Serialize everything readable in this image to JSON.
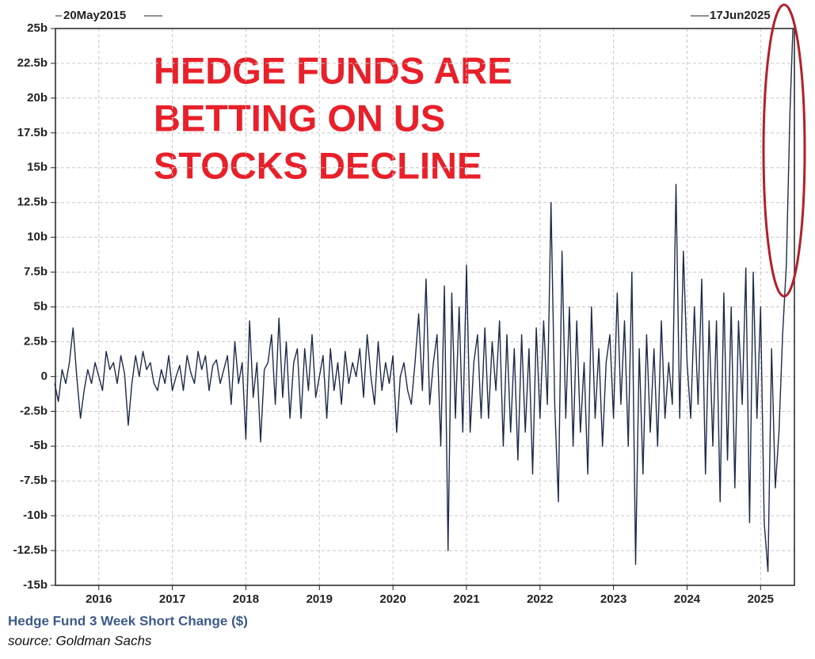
{
  "chart_data": {
    "type": "line",
    "annotation_lines": [
      "HEDGE FUNDS ARE",
      "BETTING ON US",
      "STOCKS DECLINE"
    ],
    "start_label": "20May2015",
    "end_label": "17Jun2025",
    "source": "source: Goldman Sachs",
    "grid": true,
    "x": [
      2015.4,
      2015.45,
      2015.5,
      2015.55,
      2015.6,
      2015.65,
      2015.7,
      2015.75,
      2015.8,
      2015.85,
      2015.9,
      2015.95,
      2016,
      2016.05,
      2016.1,
      2016.15,
      2016.2,
      2016.25,
      2016.3,
      2016.35,
      2016.4,
      2016.45,
      2016.5,
      2016.55,
      2016.6,
      2016.65,
      2016.7,
      2016.75,
      2016.8,
      2016.85,
      2016.9,
      2016.95,
      2017,
      2017.05,
      2017.1,
      2017.15,
      2017.2,
      2017.25,
      2017.3,
      2017.35,
      2017.4,
      2017.45,
      2017.5,
      2017.55,
      2017.6,
      2017.65,
      2017.7,
      2017.75,
      2017.8,
      2017.85,
      2017.9,
      2017.95,
      2018,
      2018.05,
      2018.1,
      2018.15,
      2018.2,
      2018.25,
      2018.3,
      2018.35,
      2018.4,
      2018.45,
      2018.5,
      2018.55,
      2018.6,
      2018.65,
      2018.7,
      2018.75,
      2018.8,
      2018.85,
      2018.9,
      2018.95,
      2019,
      2019.05,
      2019.1,
      2019.15,
      2019.2,
      2019.25,
      2019.3,
      2019.35,
      2019.4,
      2019.45,
      2019.5,
      2019.55,
      2019.6,
      2019.65,
      2019.7,
      2019.75,
      2019.8,
      2019.85,
      2019.9,
      2019.95,
      2020,
      2020.05,
      2020.1,
      2020.15,
      2020.2,
      2020.25,
      2020.3,
      2020.35,
      2020.4,
      2020.45,
      2020.5,
      2020.55,
      2020.6,
      2020.65,
      2020.7,
      2020.75,
      2020.8,
      2020.85,
      2020.9,
      2020.95,
      2021,
      2021.05,
      2021.1,
      2021.15,
      2021.2,
      2021.25,
      2021.3,
      2021.35,
      2021.4,
      2021.45,
      2021.5,
      2021.55,
      2021.6,
      2021.65,
      2021.7,
      2021.75,
      2021.8,
      2021.85,
      2021.9,
      2021.95,
      2022,
      2022.05,
      2022.1,
      2022.15,
      2022.2,
      2022.25,
      2022.3,
      2022.35,
      2022.4,
      2022.45,
      2022.5,
      2022.55,
      2022.6,
      2022.65,
      2022.7,
      2022.75,
      2022.8,
      2022.85,
      2022.9,
      2022.95,
      2023,
      2023.05,
      2023.1,
      2023.15,
      2023.2,
      2023.25,
      2023.3,
      2023.35,
      2023.4,
      2023.45,
      2023.5,
      2023.55,
      2023.6,
      2023.65,
      2023.7,
      2023.75,
      2023.8,
      2023.85,
      2023.9,
      2023.95,
      2024,
      2024.05,
      2024.1,
      2024.15,
      2024.2,
      2024.25,
      2024.3,
      2024.35,
      2024.4,
      2024.45,
      2024.5,
      2024.55,
      2024.6,
      2024.65,
      2024.7,
      2024.75,
      2024.8,
      2024.85,
      2024.9,
      2024.95,
      2025,
      2025.05,
      2025.1,
      2025.15,
      2025.2,
      2025.25,
      2025.3,
      2025.35,
      2025.4,
      2025.44
    ],
    "series": [
      {
        "name": "Hedge Fund 3 Week Short Change ($)",
        "color": "#1c2b4a",
        "values": [
          -0.5,
          -1.8,
          0.5,
          -0.5,
          1,
          3.5,
          0,
          -3,
          -1,
          0.5,
          -0.5,
          1,
          0,
          -1,
          1.8,
          0.5,
          1,
          -0.5,
          1.5,
          0.2,
          -3.5,
          -0.5,
          1.5,
          0,
          1.8,
          0.5,
          1,
          -0.5,
          -1,
          0.5,
          -0.5,
          1.5,
          -1,
          0,
          0.8,
          -1,
          1.5,
          0.3,
          -0.5,
          1.8,
          0.5,
          1.5,
          -1,
          0.8,
          1.2,
          -0.5,
          0.5,
          1.5,
          -2,
          2.5,
          -0.5,
          1,
          -4.5,
          4,
          -1.5,
          1,
          -4.7,
          0.5,
          1,
          3,
          -2,
          4.2,
          -1.5,
          2.5,
          -3,
          1,
          2,
          -3,
          2,
          -1,
          3,
          -1.5,
          0,
          1.5,
          -3,
          2,
          -1,
          1,
          -2,
          1.8,
          -0.5,
          1,
          0,
          2,
          -1.5,
          3,
          0,
          -2,
          2.5,
          -1,
          1,
          -0.5,
          1.5,
          -4,
          0,
          1,
          -1,
          -2,
          1,
          4.5,
          -1,
          7,
          -2,
          1,
          3,
          -5,
          6.5,
          -12.5,
          6,
          -3,
          5,
          -4,
          8,
          -4,
          1,
          3,
          -3,
          3.5,
          -3,
          2.5,
          -1,
          4,
          -5,
          3,
          -4,
          2,
          -6,
          3,
          -4,
          2,
          -7,
          3.5,
          -3,
          4,
          -2,
          12.5,
          -2,
          -9,
          9,
          -3,
          5,
          -5,
          4,
          -4,
          1,
          -7,
          5,
          -3,
          2,
          -5,
          1,
          3,
          -3,
          6,
          -2,
          4,
          -5,
          7.5,
          -13.5,
          2,
          -7,
          3,
          -4,
          2,
          -5,
          4,
          -3,
          1,
          -2,
          13.8,
          -3,
          9,
          1,
          -3,
          5,
          -2,
          7,
          -7,
          4,
          -5,
          4,
          -9,
          6,
          -6,
          5,
          -8,
          4,
          -2,
          7.8,
          -10.5,
          7.5,
          -3,
          5,
          -10.5,
          -14,
          2,
          -8,
          -4,
          3,
          8,
          19,
          25
        ]
      }
    ],
    "xlim": [
      2015.41,
      2025.46
    ],
    "xticks": [
      2016,
      2017,
      2018,
      2019,
      2020,
      2021,
      2022,
      2023,
      2024,
      2025
    ],
    "ylim": [
      -15,
      25
    ],
    "yticks": [
      {
        "value": 25,
        "label": "25b"
      },
      {
        "value": 22.5,
        "label": "22.5b"
      },
      {
        "value": 20,
        "label": "20b"
      },
      {
        "value": 17.5,
        "label": "17.5b"
      },
      {
        "value": 15,
        "label": "15b"
      },
      {
        "value": 12.5,
        "label": "12.5b"
      },
      {
        "value": 10,
        "label": "10b"
      },
      {
        "value": 7.5,
        "label": "7.5b"
      },
      {
        "value": 5,
        "label": "5b"
      },
      {
        "value": 2.5,
        "label": "2.5b"
      },
      {
        "value": 0,
        "label": "0"
      },
      {
        "value": -2.5,
        "label": "-2.5b"
      },
      {
        "value": -5,
        "label": "-5b"
      },
      {
        "value": -7.5,
        "label": "-7.5b"
      },
      {
        "value": -10,
        "label": "-10b"
      },
      {
        "value": -12.5,
        "label": "-12.5b"
      },
      {
        "value": -15,
        "label": "-15b"
      }
    ]
  }
}
